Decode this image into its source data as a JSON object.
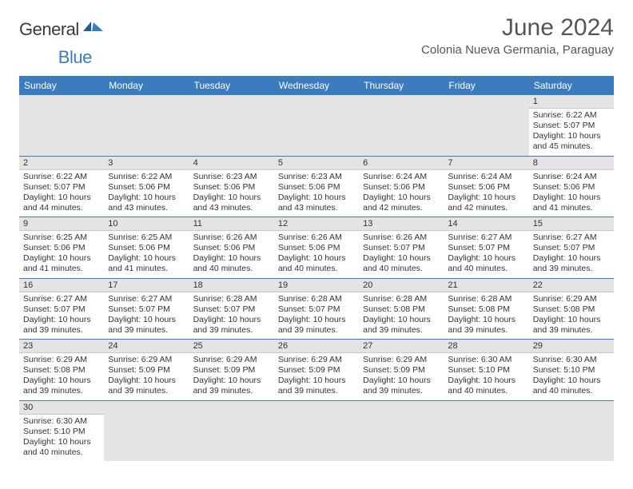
{
  "logo": {
    "main": "General",
    "sub": "Blue"
  },
  "title": "June 2024",
  "location": "Colonia Nueva Germania, Paraguay",
  "colors": {
    "header_bg": "#3b7bbf",
    "header_text": "#ffffff",
    "daynum_bg": "#e4e4e4",
    "row_divider": "#3b7bbf",
    "body_text": "#333333",
    "title_text": "#555555"
  },
  "typography": {
    "title_fontsize": 30,
    "location_fontsize": 15,
    "weekday_fontsize": 12,
    "daynum_fontsize": 11,
    "body_fontsize": 10.5
  },
  "weekdays": [
    "Sunday",
    "Monday",
    "Tuesday",
    "Wednesday",
    "Thursday",
    "Friday",
    "Saturday"
  ],
  "first_weekday_index": 6,
  "labels": {
    "sunrise": "Sunrise:",
    "sunset": "Sunset:",
    "daylight": "Daylight:"
  },
  "days": [
    {
      "n": 1,
      "sunrise": "6:22 AM",
      "sunset": "5:07 PM",
      "daylight": "10 hours and 45 minutes."
    },
    {
      "n": 2,
      "sunrise": "6:22 AM",
      "sunset": "5:07 PM",
      "daylight": "10 hours and 44 minutes."
    },
    {
      "n": 3,
      "sunrise": "6:22 AM",
      "sunset": "5:06 PM",
      "daylight": "10 hours and 43 minutes."
    },
    {
      "n": 4,
      "sunrise": "6:23 AM",
      "sunset": "5:06 PM",
      "daylight": "10 hours and 43 minutes."
    },
    {
      "n": 5,
      "sunrise": "6:23 AM",
      "sunset": "5:06 PM",
      "daylight": "10 hours and 43 minutes."
    },
    {
      "n": 6,
      "sunrise": "6:24 AM",
      "sunset": "5:06 PM",
      "daylight": "10 hours and 42 minutes."
    },
    {
      "n": 7,
      "sunrise": "6:24 AM",
      "sunset": "5:06 PM",
      "daylight": "10 hours and 42 minutes."
    },
    {
      "n": 8,
      "sunrise": "6:24 AM",
      "sunset": "5:06 PM",
      "daylight": "10 hours and 41 minutes."
    },
    {
      "n": 9,
      "sunrise": "6:25 AM",
      "sunset": "5:06 PM",
      "daylight": "10 hours and 41 minutes."
    },
    {
      "n": 10,
      "sunrise": "6:25 AM",
      "sunset": "5:06 PM",
      "daylight": "10 hours and 41 minutes."
    },
    {
      "n": 11,
      "sunrise": "6:26 AM",
      "sunset": "5:06 PM",
      "daylight": "10 hours and 40 minutes."
    },
    {
      "n": 12,
      "sunrise": "6:26 AM",
      "sunset": "5:06 PM",
      "daylight": "10 hours and 40 minutes."
    },
    {
      "n": 13,
      "sunrise": "6:26 AM",
      "sunset": "5:07 PM",
      "daylight": "10 hours and 40 minutes."
    },
    {
      "n": 14,
      "sunrise": "6:27 AM",
      "sunset": "5:07 PM",
      "daylight": "10 hours and 40 minutes."
    },
    {
      "n": 15,
      "sunrise": "6:27 AM",
      "sunset": "5:07 PM",
      "daylight": "10 hours and 39 minutes."
    },
    {
      "n": 16,
      "sunrise": "6:27 AM",
      "sunset": "5:07 PM",
      "daylight": "10 hours and 39 minutes."
    },
    {
      "n": 17,
      "sunrise": "6:27 AM",
      "sunset": "5:07 PM",
      "daylight": "10 hours and 39 minutes."
    },
    {
      "n": 18,
      "sunrise": "6:28 AM",
      "sunset": "5:07 PM",
      "daylight": "10 hours and 39 minutes."
    },
    {
      "n": 19,
      "sunrise": "6:28 AM",
      "sunset": "5:07 PM",
      "daylight": "10 hours and 39 minutes."
    },
    {
      "n": 20,
      "sunrise": "6:28 AM",
      "sunset": "5:08 PM",
      "daylight": "10 hours and 39 minutes."
    },
    {
      "n": 21,
      "sunrise": "6:28 AM",
      "sunset": "5:08 PM",
      "daylight": "10 hours and 39 minutes."
    },
    {
      "n": 22,
      "sunrise": "6:29 AM",
      "sunset": "5:08 PM",
      "daylight": "10 hours and 39 minutes."
    },
    {
      "n": 23,
      "sunrise": "6:29 AM",
      "sunset": "5:08 PM",
      "daylight": "10 hours and 39 minutes."
    },
    {
      "n": 24,
      "sunrise": "6:29 AM",
      "sunset": "5:09 PM",
      "daylight": "10 hours and 39 minutes."
    },
    {
      "n": 25,
      "sunrise": "6:29 AM",
      "sunset": "5:09 PM",
      "daylight": "10 hours and 39 minutes."
    },
    {
      "n": 26,
      "sunrise": "6:29 AM",
      "sunset": "5:09 PM",
      "daylight": "10 hours and 39 minutes."
    },
    {
      "n": 27,
      "sunrise": "6:29 AM",
      "sunset": "5:09 PM",
      "daylight": "10 hours and 39 minutes."
    },
    {
      "n": 28,
      "sunrise": "6:30 AM",
      "sunset": "5:10 PM",
      "daylight": "10 hours and 40 minutes."
    },
    {
      "n": 29,
      "sunrise": "6:30 AM",
      "sunset": "5:10 PM",
      "daylight": "10 hours and 40 minutes."
    },
    {
      "n": 30,
      "sunrise": "6:30 AM",
      "sunset": "5:10 PM",
      "daylight": "10 hours and 40 minutes."
    }
  ]
}
